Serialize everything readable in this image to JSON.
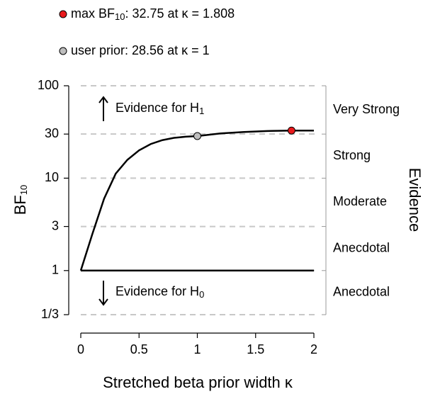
{
  "chart_data": {
    "type": "line",
    "log_y": true,
    "x_label": "Stretched beta prior width κ",
    "y_label": "BF",
    "y_label_sub": "10",
    "right_label": "Evidence",
    "x": [
      0,
      0.1,
      0.2,
      0.3,
      0.4,
      0.5,
      0.6,
      0.7,
      0.8,
      0.9,
      1.0,
      1.2,
      1.4,
      1.6,
      1.808,
      2.0
    ],
    "series": [
      {
        "color": "#000000",
        "values": [
          1,
          2.5,
          6.0,
          11.2,
          15.8,
          20.0,
          23.4,
          25.8,
          27.3,
          28.1,
          28.56,
          30.5,
          31.6,
          32.4,
          32.75,
          32.7
        ]
      }
    ],
    "h_line": 1,
    "xlim": [
      0,
      2
    ],
    "xticks": [
      0,
      0.5,
      1,
      1.5,
      2
    ],
    "ylim": [
      0.3333,
      100
    ],
    "yticks": [
      100,
      30,
      10,
      3,
      1,
      {
        "value": 0.3333,
        "label": "1/3"
      }
    ],
    "grid": true,
    "points": [
      {
        "label": "max BF",
        "label_sub": "10",
        "label_rest": ": 32.75 at κ = 1.808",
        "x": 1.808,
        "y": 32.75,
        "color": "#e8191c"
      },
      {
        "label": "user prior: 28.56 at κ = 1",
        "x": 1,
        "y": 28.56,
        "color": "#bebebe"
      }
    ],
    "annotations": [
      {
        "text": "Evidence for H",
        "sub": "1",
        "direction": "up"
      },
      {
        "text": "Evidence for H",
        "sub": "0",
        "direction": "down"
      }
    ],
    "evidence_bands": [
      {
        "label": "Very Strong",
        "from": 30,
        "to": 100
      },
      {
        "label": "Strong",
        "from": 10,
        "to": 30
      },
      {
        "label": "Moderate",
        "from": 3,
        "to": 10
      },
      {
        "label": "Anecdotal",
        "from": 1,
        "to": 3
      },
      {
        "label": "Anecdotal",
        "from": 0.3333,
        "to": 1
      }
    ]
  }
}
